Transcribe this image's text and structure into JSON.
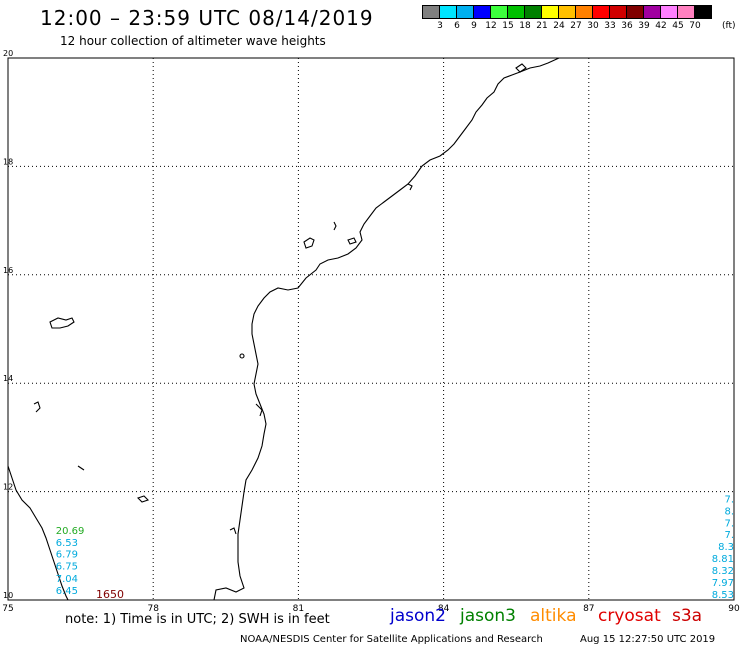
{
  "header": {
    "title": "12:00 – 23:59 UTC 08/14/2019",
    "subtitle": "12 hour collection of altimeter wave heights"
  },
  "legend": {
    "colors": [
      "#808080",
      "#00e5ff",
      "#00b0f0",
      "#0000ff",
      "#3cff3c",
      "#00c000",
      "#008000",
      "#ffff00",
      "#ffc000",
      "#ff8000",
      "#ff0000",
      "#d00000",
      "#800000",
      "#a000a0",
      "#ff80ff",
      "#ff80c0",
      "#000000"
    ],
    "labels": [
      "3",
      "6",
      "9",
      "12",
      "15",
      "18",
      "21",
      "24",
      "27",
      "30",
      "33",
      "36",
      "39",
      "42",
      "45",
      "70"
    ],
    "unit": "(ft)"
  },
  "map": {
    "lon_ticks": [
      "75",
      "78",
      "81",
      "84",
      "87",
      "90"
    ],
    "lat_ticks": [
      "20",
      "18",
      "16",
      "14",
      "12",
      "10"
    ],
    "lon_range": [
      75,
      90
    ],
    "lat_range": [
      10,
      20
    ]
  },
  "observations": {
    "west_track": {
      "color": "#00aadd",
      "first_color": "#22aa22",
      "values": [
        "20.69",
        "6.53",
        "6.79",
        "6.75",
        "7.04",
        "6.45"
      ],
      "lat": [
        11.22,
        11.0,
        10.78,
        10.56,
        10.33,
        10.11
      ],
      "lon": 76.4
    },
    "east_track": {
      "color": "#00aadd",
      "values": [
        "7.",
        "8.",
        "7.",
        "7.",
        "8.3",
        "8.81",
        "8.32",
        "7.97",
        "8.53"
      ],
      "lat": [
        11.8,
        11.58,
        11.36,
        11.14,
        10.92,
        10.7,
        10.48,
        10.26,
        10.04
      ],
      "lon": 89.85
    },
    "pass_time": {
      "text": "1650",
      "color": "#800000"
    }
  },
  "footer": {
    "note": "note: 1) Time is in UTC; 2) SWH is in feet",
    "satellites": [
      {
        "name": "jason2",
        "color": "#0000cc"
      },
      {
        "name": "jason3",
        "color": "#008000"
      },
      {
        "name": "altika",
        "color": "#ff8c00"
      },
      {
        "name": "cryosat",
        "color": "#e00000"
      },
      {
        "name": "s3a",
        "color": "#cc0000"
      }
    ],
    "credit": "NOAA/NESDIS Center for Satellite Applications and Research",
    "timestamp": "Aug 15 12:27:50 UTC 2019"
  }
}
